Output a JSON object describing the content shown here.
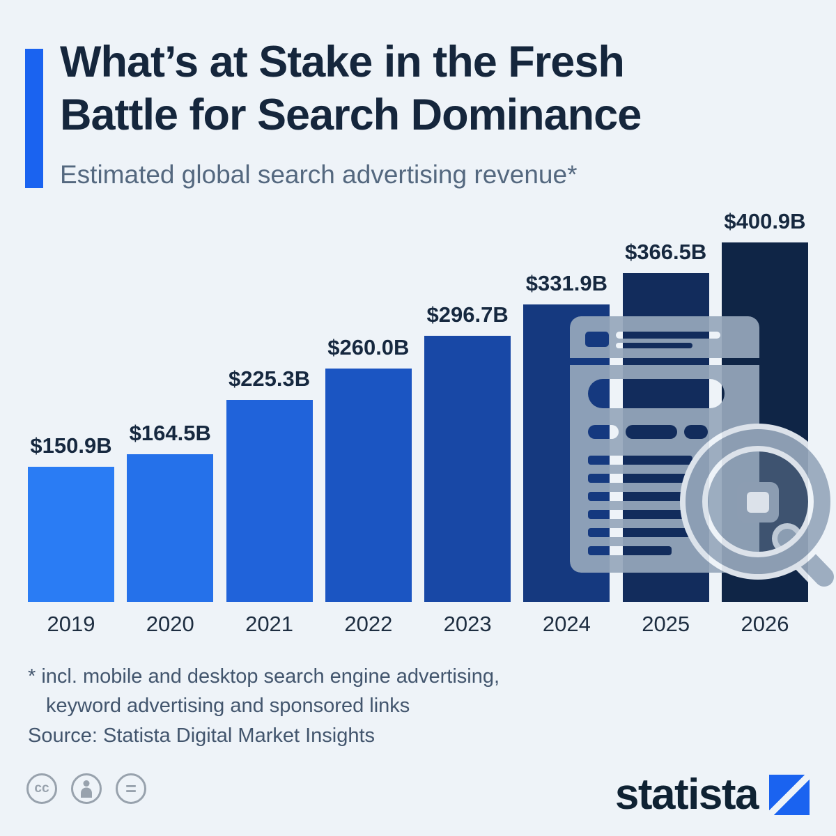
{
  "header": {
    "accent_color": "#1a63f0",
    "title_line1": "What’s at Stake in the Fresh",
    "title_line2": "Battle for Search Dominance",
    "subtitle": "Estimated global search advertising revenue*"
  },
  "chart_data": {
    "type": "bar",
    "title": "Estimated global search advertising revenue",
    "unit": "USD billions",
    "categories": [
      "2019",
      "2020",
      "2021",
      "2022",
      "2023",
      "2024",
      "2025",
      "2026"
    ],
    "values": [
      150.9,
      164.5,
      225.3,
      260.0,
      296.7,
      331.9,
      366.5,
      400.9
    ],
    "value_labels": [
      "$150.9B",
      "$164.5B",
      "$225.3B",
      "$260.0B",
      "$296.7B",
      "$331.9B",
      "$366.5B",
      "$400.9B"
    ],
    "ylim": [
      0,
      400.9
    ],
    "bar_colors": [
      "#2a7cf4",
      "#2571ea",
      "#2063da",
      "#1b55c2",
      "#1848a6",
      "#15397f",
      "#122c5c",
      "#0f2546"
    ],
    "grid": false,
    "legend": false
  },
  "footer": {
    "footnote_line1": "* incl. mobile and desktop search engine advertising,",
    "footnote_line2": "keyword advertising and sponsored links",
    "source": "Source: Statista Digital Market Insights",
    "license_badges": [
      {
        "name": "cc-icon",
        "glyph": "cc"
      },
      {
        "name": "attribution-icon",
        "glyph": ""
      },
      {
        "name": "no-derivatives-icon",
        "glyph": "="
      }
    ],
    "brand": "statista",
    "brand_color": "#0f2233",
    "logo_color": "#1a63f0"
  }
}
